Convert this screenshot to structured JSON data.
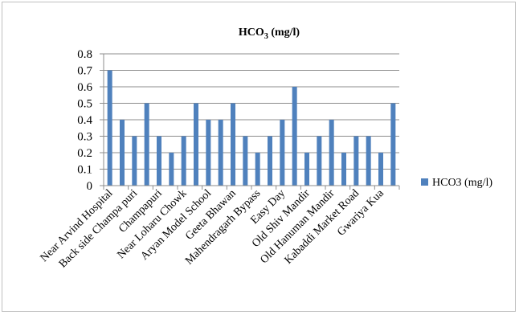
{
  "chart_data": {
    "type": "bar",
    "title_main": "HCO",
    "title_sub": "3",
    "title_rest": " (mg/l)",
    "categories": [
      "Near Arvind Hospital",
      "",
      "Back side Champa puri",
      "",
      "Champapuri",
      "",
      "Near Loharu Chowk",
      "",
      "Aryan Model School",
      "",
      "Geeta Bhawan",
      "",
      "Mahendragarh Bypass",
      "",
      "Easy Day",
      "",
      "Old Shiv Mandir",
      "",
      "Old Hanuman Mandir",
      "",
      "Kabaddi Market Road",
      "",
      "Gwariya Kua",
      ""
    ],
    "series": [
      {
        "name": "HCO3 (mg/l)",
        "color": "#4f81bd",
        "values": [
          0.7,
          0.4,
          0.3,
          0.5,
          0.3,
          0.2,
          0.3,
          0.5,
          0.4,
          0.4,
          0.5,
          0.3,
          0.2,
          0.3,
          0.4,
          0.6,
          0.2,
          0.3,
          0.4,
          0.2,
          0.3,
          0.3,
          0.2,
          0.5
        ]
      }
    ],
    "yticks": [
      "0",
      "0.1",
      "0.2",
      "0.3",
      "0.4",
      "0.5",
      "0.6",
      "0.7",
      "0.8"
    ],
    "ylim": [
      0,
      0.8
    ],
    "grid": true,
    "legend_position": "right"
  }
}
